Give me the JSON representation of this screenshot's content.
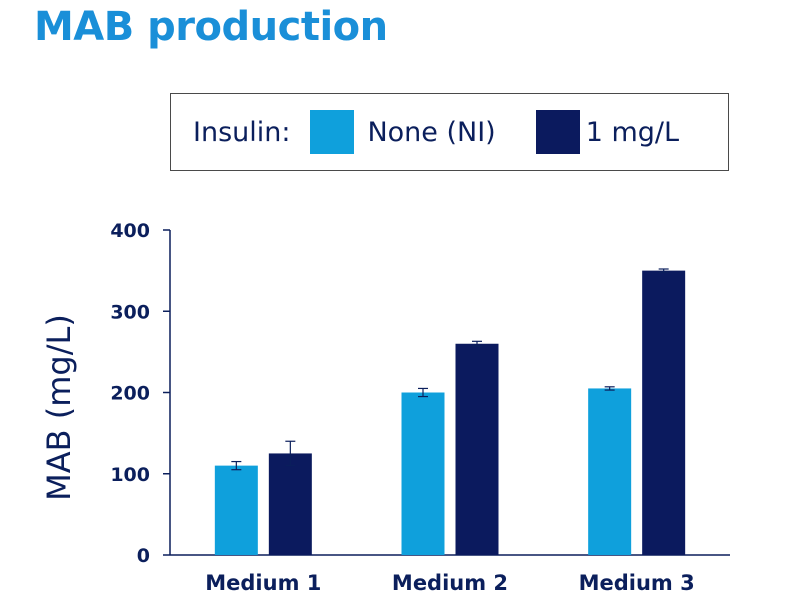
{
  "chart_data": {
    "type": "bar",
    "title": "MAB production",
    "ylabel": "MAB (mg/L)",
    "xlabel": "",
    "ylim": [
      0,
      400
    ],
    "yticks": [
      0,
      100,
      200,
      300,
      400
    ],
    "categories": [
      "Medium 1",
      "Medium 2",
      "Medium 3"
    ],
    "legend_title": "Insulin:",
    "legend_position": "top",
    "grid": false,
    "series": [
      {
        "name": "None (NI)",
        "color": "#0fa0dc",
        "values": [
          110,
          200,
          205
        ],
        "errors": [
          5,
          5,
          2
        ]
      },
      {
        "name": "1 mg/L",
        "color": "#0b1a5e",
        "values": [
          125,
          260,
          350
        ],
        "errors": [
          15,
          3,
          2
        ]
      }
    ]
  }
}
